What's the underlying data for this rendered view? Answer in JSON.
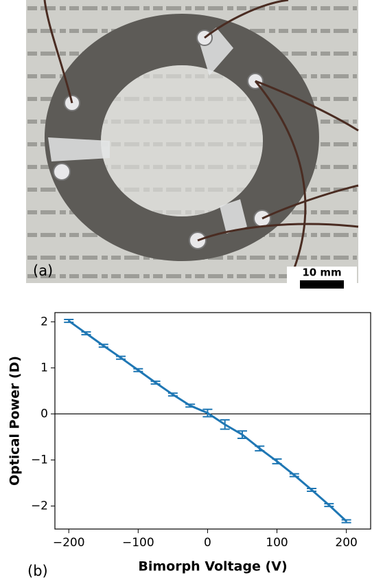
{
  "photo": {
    "panel_label": "(a)",
    "scale_bar": "10 mm"
  },
  "chart_data": {
    "type": "line",
    "panel_label": "(b)",
    "x_label": "Bimorph Voltage (V)",
    "y_label": "Optical Power (D)",
    "x": [
      -200,
      -175,
      -150,
      -125,
      -100,
      -75,
      -50,
      -25,
      0,
      25,
      50,
      75,
      100,
      125,
      150,
      175,
      200
    ],
    "values": [
      2.02,
      1.75,
      1.48,
      1.22,
      0.95,
      0.68,
      0.42,
      0.18,
      0.02,
      -0.23,
      -0.45,
      -0.75,
      -1.03,
      -1.33,
      -1.65,
      -1.98,
      -2.33
    ],
    "errors": [
      0.03,
      0.03,
      0.03,
      0.03,
      0.03,
      0.03,
      0.03,
      0.03,
      0.08,
      0.1,
      0.08,
      0.05,
      0.05,
      0.03,
      0.03,
      0.03,
      0.03
    ],
    "color": "#1f77b4",
    "zero_line": 0,
    "xlim": [
      -220,
      235
    ],
    "ylim": [
      -2.5,
      2.2
    ],
    "xticks": [
      {
        "value": -200,
        "label": "−200"
      },
      {
        "value": -100,
        "label": "−100"
      },
      0,
      100,
      200
    ],
    "yticks": [
      {
        "value": -2,
        "label": "−2"
      },
      {
        "value": -1,
        "label": "−1"
      },
      0,
      1,
      2
    ]
  }
}
